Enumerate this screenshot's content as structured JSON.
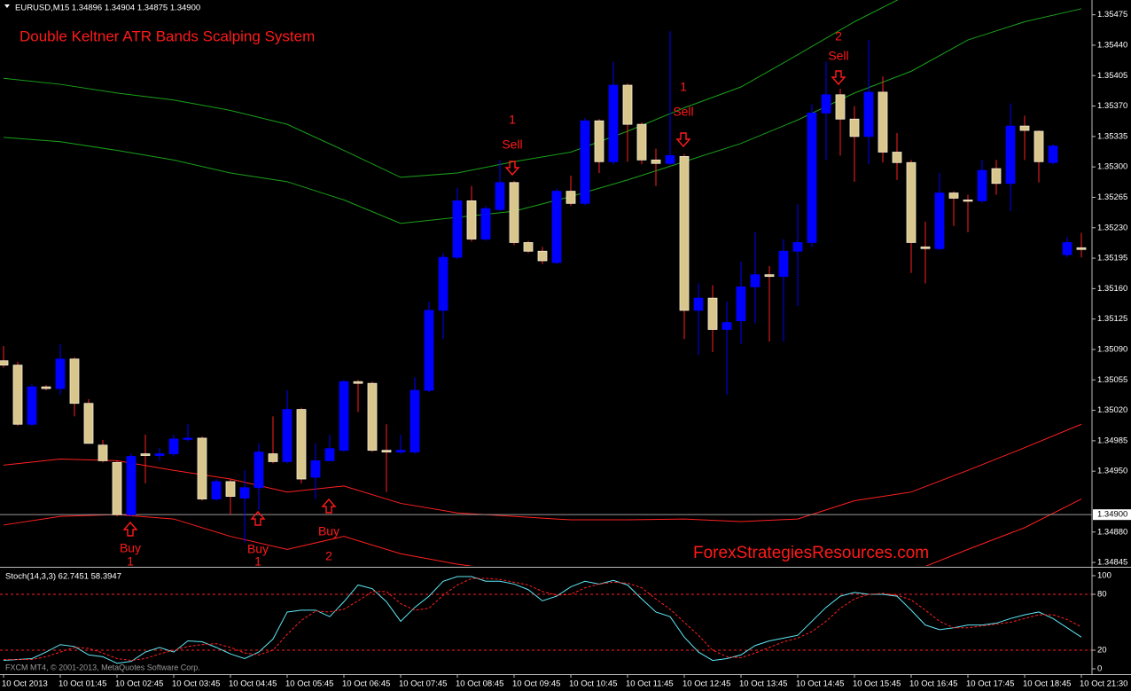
{
  "chart_data": [
    {
      "type": "candlestick",
      "title": "Double Keltner ATR Bands Scalping System",
      "subtitle": "EURUSD,M15  1.34896 1.34904 1.34875 1.34900",
      "watermark": "ForexStrategiesResources.com",
      "categories": [
        "10 Oct 2013",
        null,
        null,
        null,
        "10 Oct 01:45",
        null,
        null,
        null,
        "10 Oct 02:45",
        null,
        null,
        null,
        "10 Oct 03:45",
        null,
        null,
        null,
        "10 Oct 04:45",
        null,
        null,
        null,
        "10 Oct 05:45",
        null,
        null,
        null,
        "10 Oct 06:45",
        null,
        null,
        null,
        "10 Oct 07:45",
        null,
        null,
        null,
        "10 Oct 08:45",
        null,
        null,
        null,
        "10 Oct 09:45",
        null,
        null,
        null,
        "10 Oct 10:45",
        null,
        null,
        null,
        "10 Oct 11:45",
        null,
        null,
        null,
        "10 Oct 12:45",
        null,
        null,
        null,
        "10 Oct 13:45",
        null,
        null,
        null,
        "10 Oct 14:45",
        null,
        null,
        null,
        "10 Oct 15:45",
        null,
        null,
        null,
        "10 Oct 16:45",
        null,
        null,
        null,
        "10 Oct 17:45",
        null,
        null,
        null,
        "10 Oct 18:45",
        null,
        null,
        null,
        "10 Oct 21:30"
      ],
      "open": [
        1.35077,
        1.35072,
        1.35004,
        1.35047,
        1.35045,
        1.35079,
        1.35028,
        1.3498,
        1.3496,
        1.349,
        1.3497,
        1.34968,
        1.3497,
        1.34987,
        1.34988,
        1.34918,
        1.34938,
        1.34919,
        1.34931,
        1.3497,
        1.34961,
        1.35021,
        1.34943,
        1.34962,
        1.34974,
        1.35053,
        1.35051,
        1.34974,
        1.34972,
        1.34972,
        1.35043,
        1.35135,
        1.35196,
        1.35261,
        1.35217,
        1.35251,
        1.35282,
        1.35213,
        1.35203,
        1.3519,
        1.35272,
        1.35258,
        1.35353,
        1.35306,
        1.35394,
        1.35349,
        1.35308,
        1.35304,
        1.35312,
        1.35135,
        1.35149,
        1.35113,
        1.35123,
        1.35162,
        1.35176,
        1.35174,
        1.35203,
        1.35213,
        1.35362,
        1.35383,
        1.35355,
        1.35335,
        1.35386,
        1.35317,
        1.35305,
        1.35208,
        1.35206,
        1.3527,
        1.35262,
        1.35261,
        1.35298,
        1.35281,
        1.35347,
        1.35341,
        1.35305,
        1.35199,
        1.35207
      ],
      "high": [
        1.35094,
        1.35076,
        1.3505,
        1.35049,
        1.35096,
        1.35081,
        1.35033,
        1.34986,
        1.34962,
        1.3497,
        1.34992,
        1.34977,
        1.34992,
        1.35004,
        1.3499,
        1.34941,
        1.34941,
        1.34951,
        1.34982,
        1.35013,
        1.35043,
        1.35023,
        1.34982,
        1.34992,
        1.35055,
        1.35055,
        1.35053,
        1.35004,
        1.34992,
        1.35058,
        1.35145,
        1.35201,
        1.35276,
        1.35278,
        1.35255,
        1.35308,
        1.35284,
        1.35215,
        1.35208,
        1.35275,
        1.3529,
        1.35356,
        1.35355,
        1.35421,
        1.35396,
        1.35351,
        1.35321,
        1.35456,
        1.35315,
        1.35166,
        1.35164,
        1.35145,
        1.35191,
        1.35225,
        1.35186,
        1.35217,
        1.35257,
        1.35372,
        1.35421,
        1.3539,
        1.3537,
        1.35446,
        1.35404,
        1.35339,
        1.35308,
        1.35237,
        1.35293,
        1.35272,
        1.35268,
        1.35308,
        1.35308,
        1.35373,
        1.35359,
        1.35342,
        1.35326,
        1.35219,
        1.35224
      ],
      "low": [
        1.35069,
        1.35002,
        1.35002,
        1.35043,
        1.35038,
        1.35013,
        1.34982,
        1.3496,
        1.34898,
        1.34898,
        1.34936,
        1.34962,
        1.34967,
        1.34984,
        1.34916,
        1.34916,
        1.349,
        1.34868,
        1.34905,
        1.34959,
        1.34959,
        1.34936,
        1.34918,
        1.34967,
        1.34972,
        1.35018,
        1.34972,
        1.34926,
        1.3497,
        1.3497,
        1.35041,
        1.35102,
        1.35194,
        1.35214,
        1.35215,
        1.35249,
        1.3521,
        1.35201,
        1.35188,
        1.35188,
        1.35255,
        1.35256,
        1.35293,
        1.35303,
        1.35306,
        1.35303,
        1.35278,
        1.35302,
        1.35102,
        1.35084,
        1.35087,
        1.35038,
        1.35096,
        1.3512,
        1.35099,
        1.35099,
        1.3514,
        1.35208,
        1.35308,
        1.35313,
        1.35283,
        1.35303,
        1.35305,
        1.35285,
        1.35178,
        1.35166,
        1.35204,
        1.35232,
        1.35225,
        1.35259,
        1.35268,
        1.35249,
        1.35308,
        1.35282,
        1.35303,
        1.35196,
        1.35196
      ],
      "close": [
        1.35072,
        1.35004,
        1.35047,
        1.35045,
        1.35079,
        1.35028,
        1.34982,
        1.34962,
        1.349,
        1.34967,
        1.34968,
        1.3497,
        1.34987,
        1.34988,
        1.34918,
        1.34938,
        1.34921,
        1.34931,
        1.34972,
        1.34961,
        1.35021,
        1.34941,
        1.34962,
        1.34976,
        1.35053,
        1.35051,
        1.34974,
        1.34972,
        1.34974,
        1.35043,
        1.35135,
        1.35196,
        1.35261,
        1.35217,
        1.35252,
        1.35282,
        1.35213,
        1.35203,
        1.35192,
        1.35272,
        1.35258,
        1.35353,
        1.35306,
        1.35394,
        1.35349,
        1.35308,
        1.35304,
        1.35313,
        1.35135,
        1.35149,
        1.35113,
        1.35121,
        1.35162,
        1.35176,
        1.35174,
        1.35203,
        1.35213,
        1.35362,
        1.35383,
        1.35355,
        1.35335,
        1.35386,
        1.35317,
        1.35305,
        1.35213,
        1.35206,
        1.3527,
        1.35264,
        1.35261,
        1.35296,
        1.35281,
        1.35347,
        1.35342,
        1.35306,
        1.35324,
        1.35213,
        1.35205
      ],
      "up_color": "#0000ff",
      "down_color": "#d9c68c",
      "up_wick": "#0000ff",
      "down_wick": "#ff2020",
      "ylim": [
        1.34841,
        1.35492
      ],
      "yticks": [
        {
          "value": 1.35475,
          "label": "1.35475"
        },
        {
          "value": 1.3544,
          "label": "1.35440"
        },
        {
          "value": 1.35405,
          "label": "1.35405"
        },
        {
          "value": 1.3537,
          "label": "1.35370"
        },
        {
          "value": 1.35335,
          "label": "1.35335"
        },
        {
          "value": 1.353,
          "label": "1.35300"
        },
        {
          "value": 1.35265,
          "label": "1.35265"
        },
        {
          "value": 1.3523,
          "label": "1.35230"
        },
        {
          "value": 1.35195,
          "label": "1.35195"
        },
        {
          "value": 1.3516,
          "label": "1.35160"
        },
        {
          "value": 1.35125,
          "label": "1.35125"
        },
        {
          "value": 1.3509,
          "label": "1.35090"
        },
        {
          "value": 1.35055,
          "label": "1.35055"
        },
        {
          "value": 1.3502,
          "label": "1.35020"
        },
        {
          "value": 1.34985,
          "label": "1.34985"
        },
        {
          "value": 1.3495,
          "label": "1.34950"
        },
        {
          "value": 1.3488,
          "label": "1.34880"
        },
        {
          "value": 1.34845,
          "label": "1.34845"
        }
      ],
      "current_price": {
        "value": 1.349,
        "label": "1.34900"
      },
      "bands": {
        "x": [
          "10 Oct 2013",
          "10 Oct 01:45",
          "10 Oct 02:45",
          "10 Oct 03:45",
          "10 Oct 04:45",
          "10 Oct 05:45",
          "10 Oct 06:45",
          "10 Oct 07:45",
          "10 Oct 08:45",
          "10 Oct 09:45",
          "10 Oct 10:45",
          "10 Oct 11:45",
          "10 Oct 12:45",
          "10 Oct 13:45",
          "10 Oct 14:45",
          "10 Oct 15:45",
          "10 Oct 16:45",
          "10 Oct 17:45",
          "10 Oct 18:45",
          "10 Oct 21:30"
        ],
        "series": [
          {
            "color": "#1aa01a",
            "values": [
              1.35402,
              1.35395,
              1.35385,
              1.35377,
              1.35365,
              1.35349,
              1.35319,
              1.35288,
              1.35293,
              1.35306,
              1.35317,
              1.35341,
              1.35368,
              1.35392,
              1.35429,
              1.35467,
              1.355,
              null,
              null,
              null
            ]
          },
          {
            "color": "#1aa01a",
            "values": [
              1.35334,
              1.35329,
              1.35319,
              1.35308,
              1.35293,
              1.35283,
              1.35262,
              1.35235,
              1.35242,
              1.35249,
              1.35266,
              1.35285,
              1.35306,
              1.35327,
              1.35354,
              1.35385,
              1.3541,
              1.35446,
              1.35467,
              1.35482
            ]
          },
          {
            "color": "#ff2020",
            "values": [
              1.34957,
              1.34964,
              1.34962,
              1.34951,
              1.34941,
              1.34926,
              1.34933,
              1.34913,
              1.34902,
              1.34898,
              1.34894,
              1.34894,
              1.34895,
              1.34892,
              1.34895,
              1.34916,
              1.34926,
              1.34951,
              1.34977,
              1.35004
            ]
          },
          {
            "color": "#ff2020",
            "values": [
              1.34888,
              1.34898,
              1.349,
              1.34895,
              1.34875,
              1.3486,
              1.34875,
              1.34855,
              1.34843,
              1.34834,
              1.34829,
              1.34824,
              1.34819,
              1.34819,
              1.34821,
              1.34824,
              1.34834,
              1.3486,
              1.34885,
              1.34918
            ]
          }
        ]
      },
      "signals": [
        {
          "text": "Buy",
          "rank": 1
        },
        {
          "text": "Buy",
          "rank": 1
        },
        {
          "text": "Buy",
          "rank": 2
        },
        {
          "text": "Sell",
          "rank": 1
        },
        {
          "text": "Sell",
          "rank": 1
        },
        {
          "text": "Sell",
          "rank": 2
        }
      ]
    },
    {
      "type": "line",
      "title": "Stoch(14,3,3) 62.7451 58.3947",
      "series": [
        {
          "color": "#5fe8f5",
          "dashed": false,
          "values": [
            9,
            10,
            11,
            18,
            26,
            24,
            15,
            13,
            6,
            8,
            18,
            23,
            18,
            30,
            29,
            23,
            16,
            11,
            18,
            32,
            61,
            63,
            63,
            56,
            72,
            90,
            86,
            72,
            51,
            66,
            78,
            94,
            99,
            99,
            94,
            94,
            91,
            85,
            73,
            78,
            88,
            94,
            91,
            95,
            90,
            75,
            61,
            56,
            34,
            18,
            9,
            11,
            15,
            25,
            30,
            33,
            36,
            51,
            66,
            78,
            82,
            80,
            80,
            78,
            63,
            47,
            42,
            44,
            47,
            47,
            49,
            54,
            58,
            61,
            54,
            44,
            34
          ]
        },
        {
          "color": "#ff2020",
          "dashed": true,
          "values": [
            10,
            10,
            10,
            13,
            18,
            23,
            22,
            17,
            11,
            9,
            11,
            16,
            20,
            24,
            26,
            27,
            23,
            17,
            15,
            20,
            37,
            52,
            62,
            61,
            64,
            73,
            83,
            83,
            70,
            63,
            65,
            79,
            90,
            97,
            97,
            96,
            93,
            90,
            83,
            79,
            80,
            87,
            91,
            93,
            92,
            87,
            75,
            64,
            50,
            36,
            20,
            13,
            12,
            17,
            23,
            29,
            33,
            40,
            51,
            65,
            75,
            80,
            81,
            79,
            74,
            63,
            51,
            44,
            44,
            46,
            48,
            50,
            54,
            58,
            58,
            53,
            45
          ]
        }
      ],
      "ylim": [
        -5.7,
        107.6
      ],
      "yticks": [
        100,
        80,
        20,
        0
      ],
      "levels": [
        80,
        20
      ],
      "level_color": "#ff2020"
    }
  ],
  "footer": "FXCM MT4, © 2001-2013, MetaQuotes Software Corp."
}
